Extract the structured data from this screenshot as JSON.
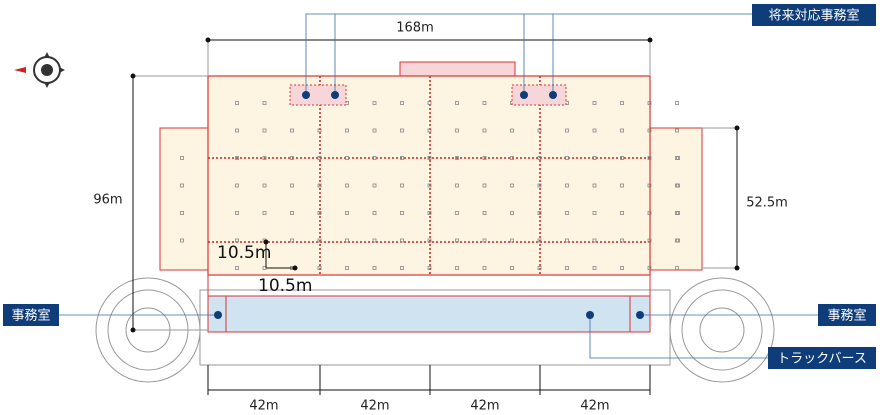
{
  "dimensions": {
    "total_width": "168m",
    "total_depth": "96m",
    "wing_depth": "52.5m",
    "span_v": "10.5m",
    "span_h": "10.5m",
    "bays": [
      "42m",
      "42m",
      "42m",
      "42m"
    ]
  },
  "labels": {
    "future_office": "将来対応事務室",
    "office_left": "事務室",
    "office_right": "事務室",
    "truck_berth": "トラックバース"
  }
}
